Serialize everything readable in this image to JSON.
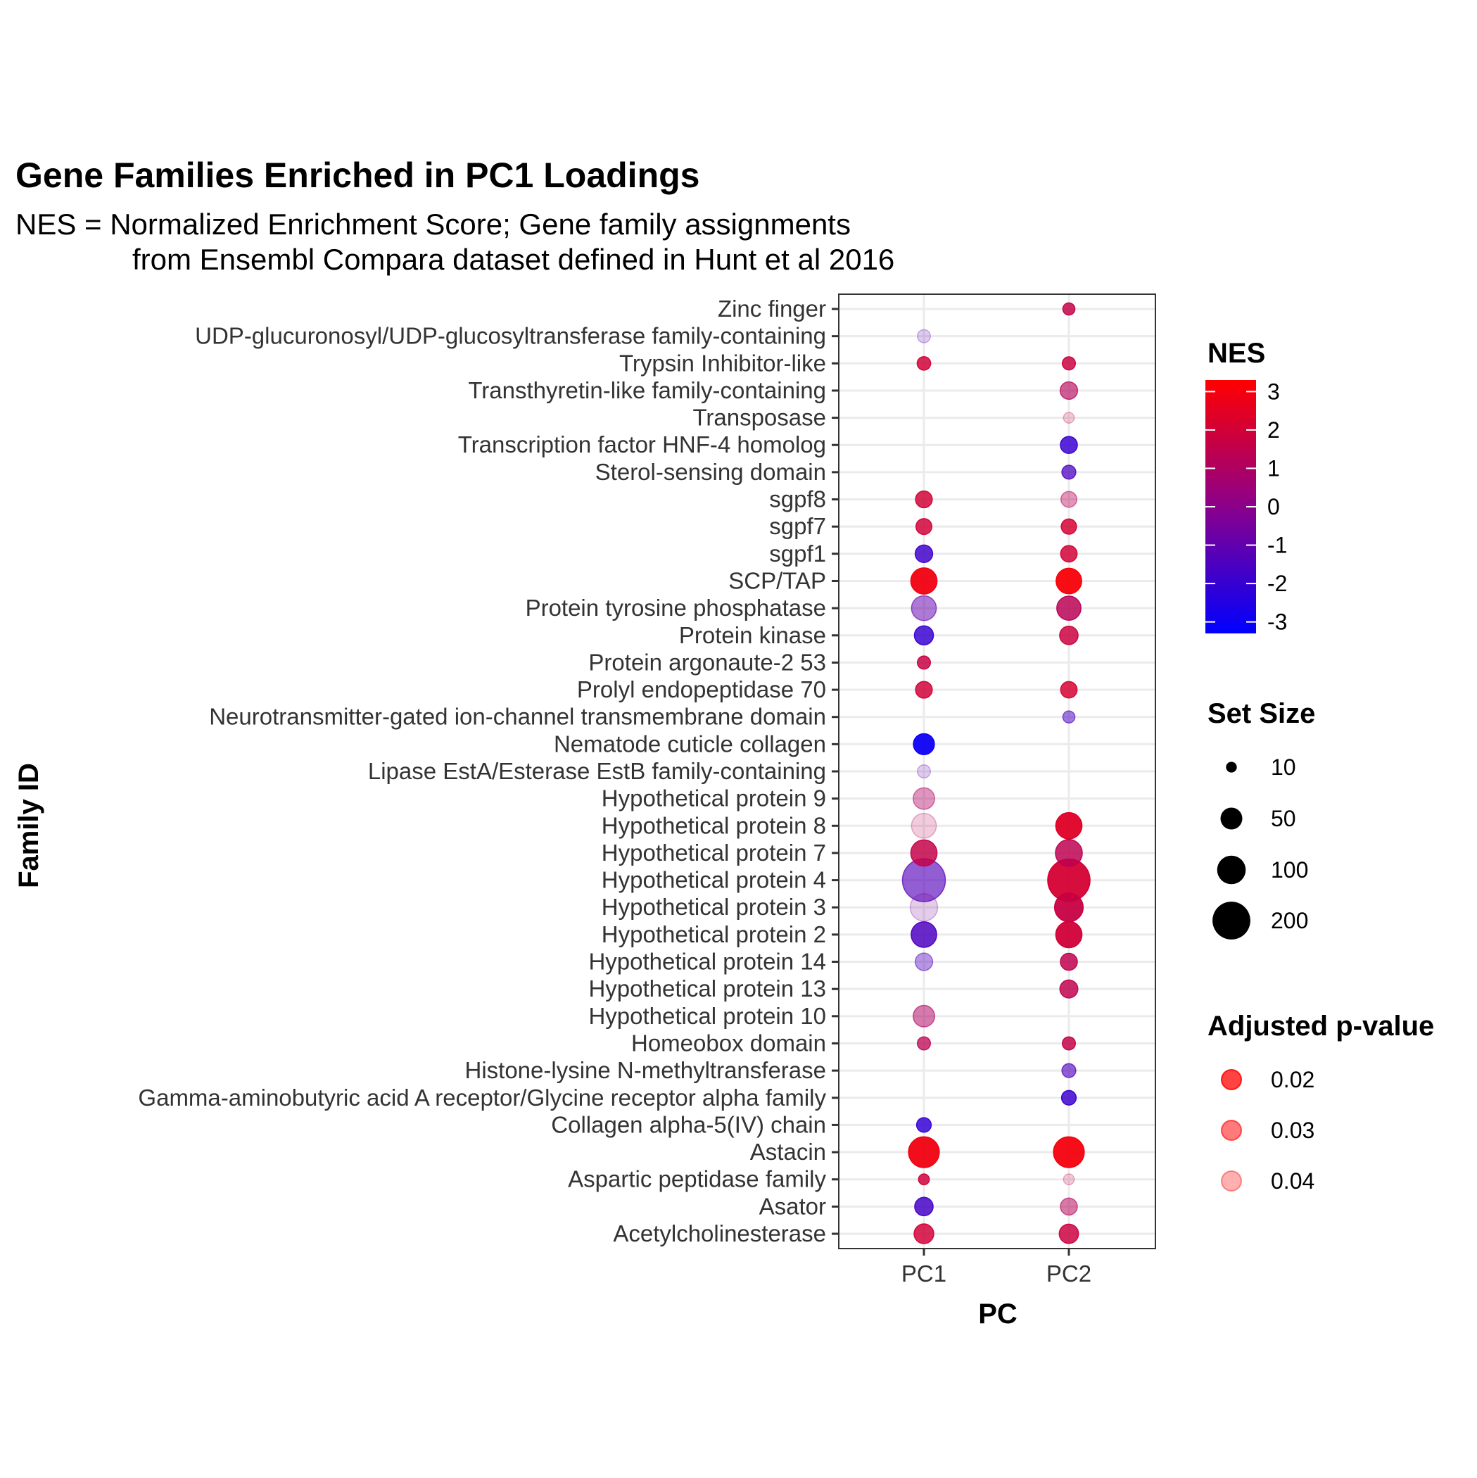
{
  "chart_data": {
    "type": "scatter",
    "title": "Gene Families Enriched in PC1 Loadings",
    "subtitle_lines": [
      "NES = Normalized Enrichment Score; Gene family assignments",
      "from Ensembl Compara dataset defined in Hunt et al 2016"
    ],
    "xlabel": "PC",
    "ylabel": "Family ID",
    "x_categories": [
      "PC1",
      "PC2"
    ],
    "y_categories": [
      "Zinc finger",
      "UDP-glucuronosyl/UDP-glucosyltransferase family-containing ",
      "Trypsin Inhibitor-like",
      "Transthyretin-like family-containing",
      "Transposase",
      "Transcription factor HNF-4 homolog",
      "Sterol-sensing domain",
      "sgpf8",
      "sgpf7",
      "sgpf1",
      "SCP/TAP",
      "Protein tyrosine phosphatase",
      "Protein kinase",
      "Protein argonaute-2 53",
      "Prolyl endopeptidase 70",
      "Neurotransmitter-gated ion-channel transmembrane domain",
      "Nematode cuticle collagen",
      "Lipase EstA/Esterase EstB family-containing",
      "Hypothetical protein 9",
      "Hypothetical protein 8",
      "Hypothetical protein 7",
      "Hypothetical protein 4",
      "Hypothetical protein 3",
      "Hypothetical protein 2",
      "Hypothetical protein 14",
      "Hypothetical protein 13",
      "Hypothetical protein 10",
      "Homeobox domain",
      "Histone-lysine N-methyltransferase",
      "Gamma-aminobutyric acid A receptor/Glycine receptor alpha family",
      "Collagen alpha-5(IV) chain",
      "Astacin",
      "Aspartic peptidase family",
      "Asator",
      "Acetylcholinesterase"
    ],
    "points": [
      {
        "family": "Zinc finger",
        "pc": "PC2",
        "nes": 1.6,
        "set_size": 12,
        "padj": 0.015
      },
      {
        "family": "UDP-glucuronosyl/UDP-glucosyltransferase family-containing ",
        "pc": "PC1",
        "nes": -1.2,
        "set_size": 14,
        "padj": 0.045
      },
      {
        "family": "Trypsin Inhibitor-like",
        "pc": "PC1",
        "nes": 2.0,
        "set_size": 15,
        "padj": 0.015
      },
      {
        "family": "Trypsin Inhibitor-like",
        "pc": "PC2",
        "nes": 1.8,
        "set_size": 14,
        "padj": 0.015
      },
      {
        "family": "Transthyretin-like family-containing",
        "pc": "PC2",
        "nes": 1.2,
        "set_size": 28,
        "padj": 0.025
      },
      {
        "family": "Transposase",
        "pc": "PC2",
        "nes": 1.5,
        "set_size": 10,
        "padj": 0.045
      },
      {
        "family": "Transcription factor HNF-4 homolog",
        "pc": "PC2",
        "nes": -2.0,
        "set_size": 26,
        "padj": 0.015
      },
      {
        "family": "Sterol-sensing domain",
        "pc": "PC2",
        "nes": -1.5,
        "set_size": 16,
        "padj": 0.02
      },
      {
        "family": "sgpf8",
        "pc": "PC1",
        "nes": 2.0,
        "set_size": 25,
        "padj": 0.015
      },
      {
        "family": "sgpf8",
        "pc": "PC2",
        "nes": 1.2,
        "set_size": 22,
        "padj": 0.035
      },
      {
        "family": "sgpf7",
        "pc": "PC1",
        "nes": 2.0,
        "set_size": 22,
        "padj": 0.015
      },
      {
        "family": "sgpf7",
        "pc": "PC2",
        "nes": 2.1,
        "set_size": 20,
        "padj": 0.015
      },
      {
        "family": "sgpf1",
        "pc": "PC1",
        "nes": -1.8,
        "set_size": 28,
        "padj": 0.015
      },
      {
        "family": "sgpf1",
        "pc": "PC2",
        "nes": 2.0,
        "set_size": 24,
        "padj": 0.015
      },
      {
        "family": "SCP/TAP",
        "pc": "PC1",
        "nes": 2.9,
        "set_size": 80,
        "padj": 0.01
      },
      {
        "family": "SCP/TAP",
        "pc": "PC2",
        "nes": 3.1,
        "set_size": 75,
        "padj": 0.01
      },
      {
        "family": "Protein tyrosine phosphatase",
        "pc": "PC1",
        "nes": -1.0,
        "set_size": 70,
        "padj": 0.03
      },
      {
        "family": "Protein tyrosine phosphatase",
        "pc": "PC2",
        "nes": 1.3,
        "set_size": 65,
        "padj": 0.015
      },
      {
        "family": "Protein kinase",
        "pc": "PC1",
        "nes": -2.0,
        "set_size": 35,
        "padj": 0.015
      },
      {
        "family": "Protein kinase",
        "pc": "PC2",
        "nes": 1.8,
        "set_size": 32,
        "padj": 0.015
      },
      {
        "family": "Protein argonaute-2 53",
        "pc": "PC1",
        "nes": 1.7,
        "set_size": 14,
        "padj": 0.015
      },
      {
        "family": "Prolyl endopeptidase 70",
        "pc": "PC1",
        "nes": 2.0,
        "set_size": 25,
        "padj": 0.015
      },
      {
        "family": "Prolyl endopeptidase 70",
        "pc": "PC2",
        "nes": 2.1,
        "set_size": 24,
        "padj": 0.015
      },
      {
        "family": "Neurotransmitter-gated ion-channel transmembrane domain",
        "pc": "PC2",
        "nes": -1.5,
        "set_size": 12,
        "padj": 0.03
      },
      {
        "family": "Nematode cuticle collagen",
        "pc": "PC1",
        "nes": -3.0,
        "set_size": 45,
        "padj": 0.01
      },
      {
        "family": "Lipase EstA/Esterase EstB family-containing",
        "pc": "PC1",
        "nes": -1.0,
        "set_size": 14,
        "padj": 0.045
      },
      {
        "family": "Hypothetical protein 9",
        "pc": "PC1",
        "nes": 1.0,
        "set_size": 48,
        "padj": 0.035
      },
      {
        "family": "Hypothetical protein 8",
        "pc": "PC1",
        "nes": 1.3,
        "set_size": 70,
        "padj": 0.045
      },
      {
        "family": "Hypothetical protein 8",
        "pc": "PC2",
        "nes": 2.4,
        "set_size": 80,
        "padj": 0.01
      },
      {
        "family": "Hypothetical protein 7",
        "pc": "PC1",
        "nes": 1.6,
        "set_size": 80,
        "padj": 0.015
      },
      {
        "family": "Hypothetical protein 7",
        "pc": "PC2",
        "nes": 1.4,
        "set_size": 85,
        "padj": 0.015
      },
      {
        "family": "Hypothetical protein 4",
        "pc": "PC1",
        "nes": -1.3,
        "set_size": 270,
        "padj": 0.025
      },
      {
        "family": "Hypothetical protein 4",
        "pc": "PC2",
        "nes": 2.1,
        "set_size": 260,
        "padj": 0.01
      },
      {
        "family": "Hypothetical protein 3",
        "pc": "PC1",
        "nes": -0.5,
        "set_size": 90,
        "padj": 0.045
      },
      {
        "family": "Hypothetical protein 3",
        "pc": "PC2",
        "nes": 1.7,
        "set_size": 100,
        "padj": 0.01
      },
      {
        "family": "Hypothetical protein 2",
        "pc": "PC1",
        "nes": -1.5,
        "set_size": 75,
        "padj": 0.015
      },
      {
        "family": "Hypothetical protein 2",
        "pc": "PC2",
        "nes": 2.0,
        "set_size": 80,
        "padj": 0.01
      },
      {
        "family": "Hypothetical protein 14",
        "pc": "PC1",
        "nes": -1.4,
        "set_size": 28,
        "padj": 0.035
      },
      {
        "family": "Hypothetical protein 14",
        "pc": "PC2",
        "nes": 1.5,
        "set_size": 26,
        "padj": 0.015
      },
      {
        "family": "Hypothetical protein 13",
        "pc": "PC2",
        "nes": 1.5,
        "set_size": 30,
        "padj": 0.015
      },
      {
        "family": "Hypothetical protein 10",
        "pc": "PC1",
        "nes": 1.0,
        "set_size": 48,
        "padj": 0.03
      },
      {
        "family": "Homeobox domain",
        "pc": "PC1",
        "nes": 1.4,
        "set_size": 14,
        "padj": 0.02
      },
      {
        "family": "Homeobox domain",
        "pc": "PC2",
        "nes": 1.6,
        "set_size": 14,
        "padj": 0.015
      },
      {
        "family": "Histone-lysine N-methyltransferase",
        "pc": "PC2",
        "nes": -1.4,
        "set_size": 16,
        "padj": 0.025
      },
      {
        "family": "Gamma-aminobutyric acid A receptor/Glycine receptor alpha family",
        "pc": "PC2",
        "nes": -1.9,
        "set_size": 18,
        "padj": 0.015
      },
      {
        "family": "Collagen alpha-5(IV) chain",
        "pc": "PC1",
        "nes": -2.1,
        "set_size": 18,
        "padj": 0.015
      },
      {
        "family": "Astacin",
        "pc": "PC1",
        "nes": 2.9,
        "set_size": 120,
        "padj": 0.01
      },
      {
        "family": "Astacin",
        "pc": "PC2",
        "nes": 3.0,
        "set_size": 120,
        "padj": 0.01
      },
      {
        "family": "Aspartic peptidase family",
        "pc": "PC1",
        "nes": 1.9,
        "set_size": 10,
        "padj": 0.015
      },
      {
        "family": "Aspartic peptidase family",
        "pc": "PC2",
        "nes": 1.5,
        "set_size": 10,
        "padj": 0.045
      },
      {
        "family": "Asator",
        "pc": "PC1",
        "nes": -1.7,
        "set_size": 32,
        "padj": 0.015
      },
      {
        "family": "Asator",
        "pc": "PC2",
        "nes": 1.2,
        "set_size": 26,
        "padj": 0.03
      },
      {
        "family": "Acetylcholinesterase",
        "pc": "PC1",
        "nes": 2.0,
        "set_size": 38,
        "padj": 0.015
      },
      {
        "family": "Acetylcholinesterase",
        "pc": "PC2",
        "nes": 1.8,
        "set_size": 36,
        "padj": 0.015
      }
    ],
    "nes_range": [
      -3.3,
      3.3
    ],
    "nes_legend": {
      "title": "NES",
      "ticks": [
        3,
        2,
        1,
        0,
        -1,
        -2,
        -3
      ],
      "colors": {
        "low": "#0000FF",
        "mid": "#8B008B",
        "high": "#FF0000"
      }
    },
    "size_legend": {
      "title": "Set Size",
      "values": [
        10,
        50,
        100,
        200
      ]
    },
    "padj_legend": {
      "title": "Adjusted p-value",
      "values": [
        0.02,
        0.03,
        0.04
      ],
      "color": "#FF0000"
    },
    "grid": true,
    "legend_position": "right"
  }
}
